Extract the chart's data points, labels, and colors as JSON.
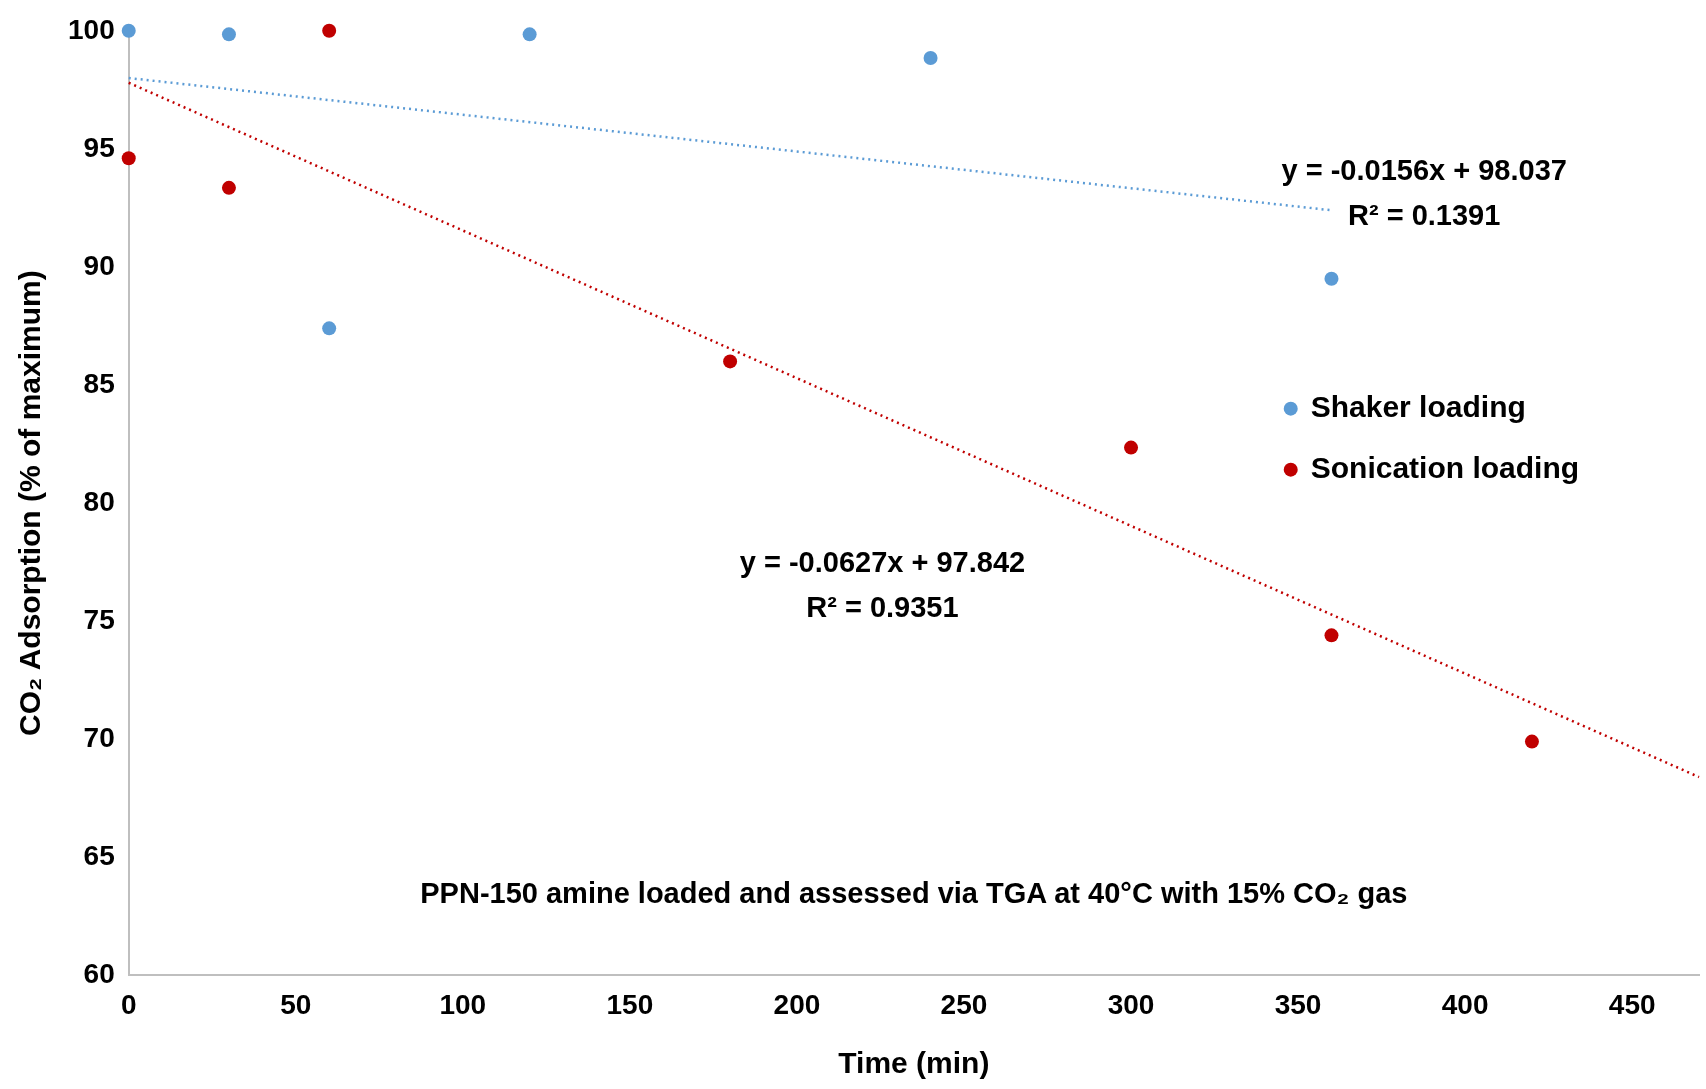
{
  "chart_data": {
    "type": "scatter",
    "xlabel": "Time (min)",
    "ylabel": "CO₂ Adsorption (% of maximum)",
    "xlim": [
      0,
      470
    ],
    "xticks": [
      0,
      50,
      100,
      150,
      200,
      250,
      300,
      350,
      400,
      450
    ],
    "ylim": [
      60,
      100
    ],
    "yticks": [
      60,
      65,
      70,
      75,
      80,
      85,
      90,
      95,
      100
    ],
    "grid": false,
    "legend": "right",
    "marker": "circle",
    "series": [
      {
        "name": "Shaker loading",
        "color": "#5b9bd5",
        "x": [
          0,
          30,
          60,
          120,
          240,
          360
        ],
        "values": [
          100,
          99.85,
          87.4,
          99.85,
          98.85,
          89.5
        ]
      },
      {
        "name": "Sonication loading",
        "color": "#c00000",
        "x": [
          0,
          30,
          60,
          180,
          300,
          360,
          420
        ],
        "values": [
          94.6,
          93.35,
          100,
          86,
          82.35,
          74.4,
          69.9
        ]
      },
      {
        "type": "line",
        "color": "#5b9bd5",
        "line_style": "dotted",
        "marker": "none",
        "x": [
          0,
          360
        ],
        "values": [
          98,
          92.4
        ]
      },
      {
        "type": "line",
        "color": "#c00000",
        "line_style": "dotted",
        "marker": "none",
        "x": [
          0,
          470
        ],
        "values": [
          97.8,
          68.4
        ]
      }
    ],
    "annotations": [
      "y = -0.0156x + 98.037\nR² = 0.1391",
      "y = -0.0627x + 97.842\nR² = 0.9351",
      "PPN-150 amine loaded and assessed via TGA at 40°C with 15% CO₂ gas"
    ]
  }
}
